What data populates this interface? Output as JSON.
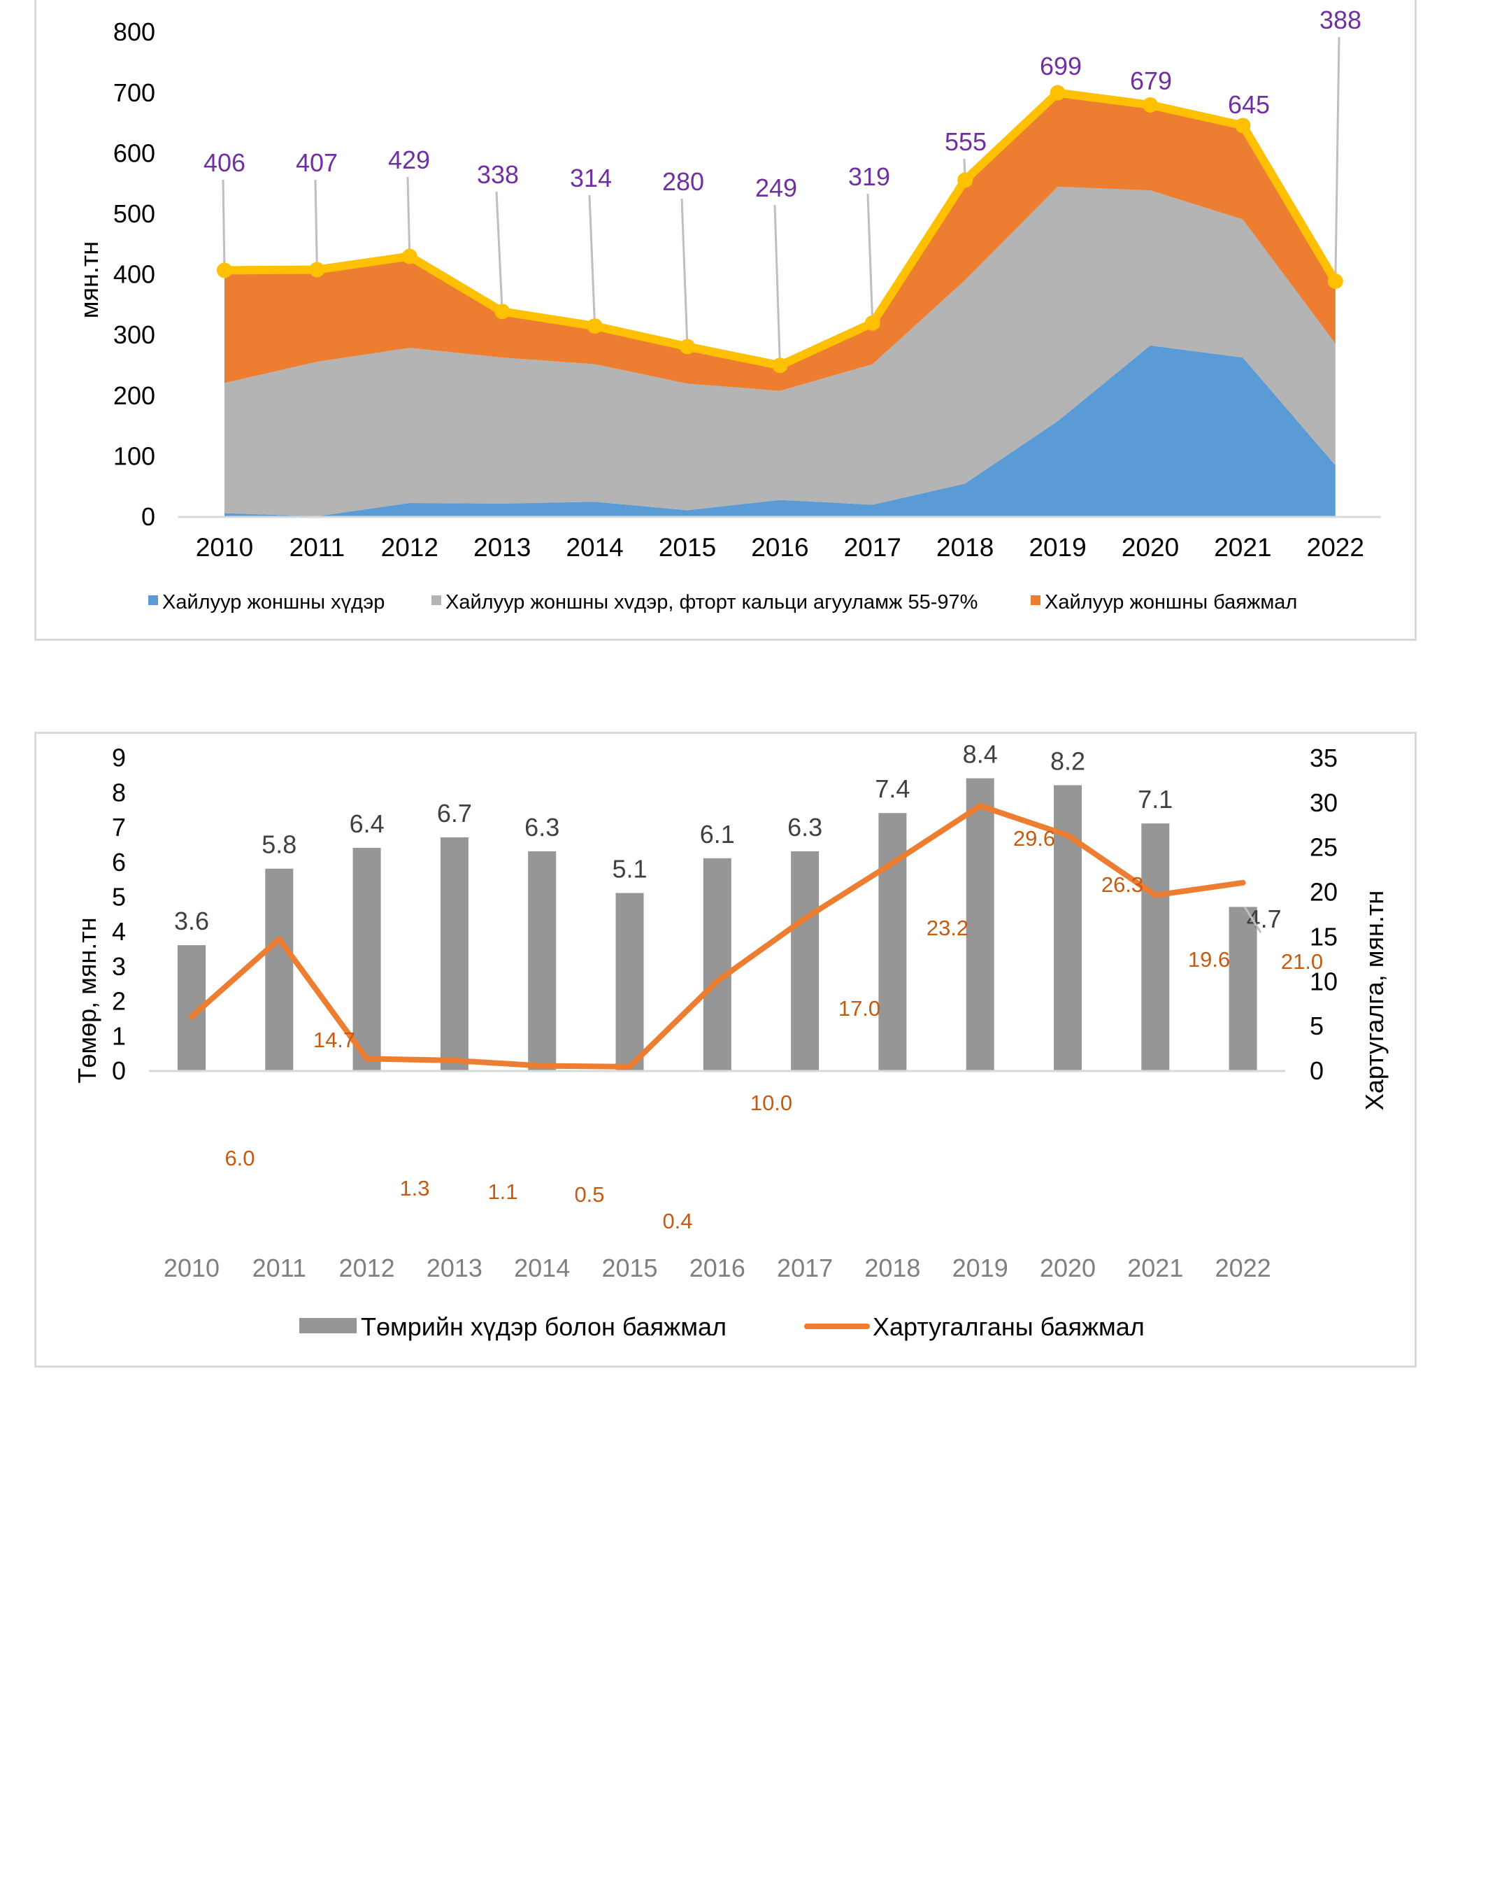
{
  "chart_data": [
    {
      "type": "area",
      "stacked": true,
      "title": "",
      "xlabel": "",
      "ylabel": "мян.тн",
      "ylim": [
        0,
        800
      ],
      "yticks": [
        "0",
        "100",
        "200",
        "300",
        "400",
        "500",
        "600",
        "700",
        "800"
      ],
      "categories": [
        "2010",
        "2011",
        "2012",
        "2013",
        "2014",
        "2015",
        "2016",
        "2017",
        "2018",
        "2019",
        "2020",
        "2021",
        "2022"
      ],
      "series": [
        {
          "name": "Хайлуур жоншны хүдэр",
          "color": "#5b9bd5",
          "values": [
            5,
            0,
            22,
            21,
            24,
            10,
            27,
            19,
            54,
            157,
            282,
            262,
            84
          ]
        },
        {
          "name": "Хайлуур жоншны хvдэр, фторт кальци агууламж 55-97%",
          "color": "#b4b4b4",
          "values": [
            215,
            255,
            256,
            241,
            227,
            209,
            180,
            232,
            336,
            387,
            256,
            228,
            201
          ]
        },
        {
          "name": "Хайлуур жоншны баяжмал",
          "color": "#ed7d31",
          "values": [
            186,
            152,
            151,
            76,
            63,
            61,
            42,
            68,
            165,
            155,
            141,
            155,
            103
          ]
        }
      ],
      "total_line": {
        "color": "#ffc000",
        "label_color": "#7030a0",
        "values": [
          406,
          407,
          429,
          338,
          314,
          280,
          249,
          319,
          555,
          699,
          679,
          645,
          388
        ],
        "labels": [
          "406",
          "407",
          "429",
          "338",
          "314",
          "280",
          "249",
          "319",
          "555",
          "699",
          "679",
          "645",
          "388"
        ]
      },
      "legend_position": "bottom",
      "grid": false
    },
    {
      "type": "bar",
      "combo_line": true,
      "title": "",
      "xlabel": "",
      "ylabel_left": "Төмөр, мян.тн",
      "ylabel_right": "Хартугалга, мян.тн",
      "ylim_left": [
        0,
        9
      ],
      "ylim_right": [
        0,
        35
      ],
      "yticks_left": [
        "0",
        "1",
        "2",
        "3",
        "4",
        "5",
        "6",
        "7",
        "8",
        "9"
      ],
      "yticks_right": [
        "0",
        "5",
        "10",
        "15",
        "20",
        "25",
        "30",
        "35"
      ],
      "categories": [
        "2010",
        "2011",
        "2012",
        "2013",
        "2014",
        "2015",
        "2016",
        "2017",
        "2018",
        "2019",
        "2020",
        "2021",
        "2022"
      ],
      "series": [
        {
          "name": "Төмрийн хүдэр болон баяжмал",
          "kind": "bar",
          "axis": "left",
          "color": "#969696",
          "values": [
            3.6,
            5.8,
            6.4,
            6.7,
            6.3,
            5.1,
            6.1,
            6.3,
            7.4,
            8.4,
            8.2,
            7.1,
            4.7
          ],
          "labels": [
            "3.6",
            "5.8",
            "6.4",
            "6.7",
            "6.3",
            "5.1",
            "6.1",
            "6.3",
            "7.4",
            "8.4",
            "8.2",
            "7.1",
            "4.7"
          ]
        },
        {
          "name": "Хартугалганы баяжмал",
          "kind": "line",
          "axis": "right",
          "color": "#ed7d31",
          "values": [
            6.0,
            14.7,
            1.3,
            1.1,
            0.5,
            0.4,
            10.0,
            17.0,
            23.2,
            29.6,
            26.3,
            19.6,
            21.0
          ],
          "labels": [
            "6.0",
            "14.7",
            "1.3",
            "1.1",
            "0.5",
            "0.4",
            "10.0",
            "17.0",
            "23.2",
            "29.6",
            "26.3",
            "19.6",
            "21.0"
          ]
        }
      ],
      "legend_position": "bottom",
      "grid": false
    }
  ]
}
